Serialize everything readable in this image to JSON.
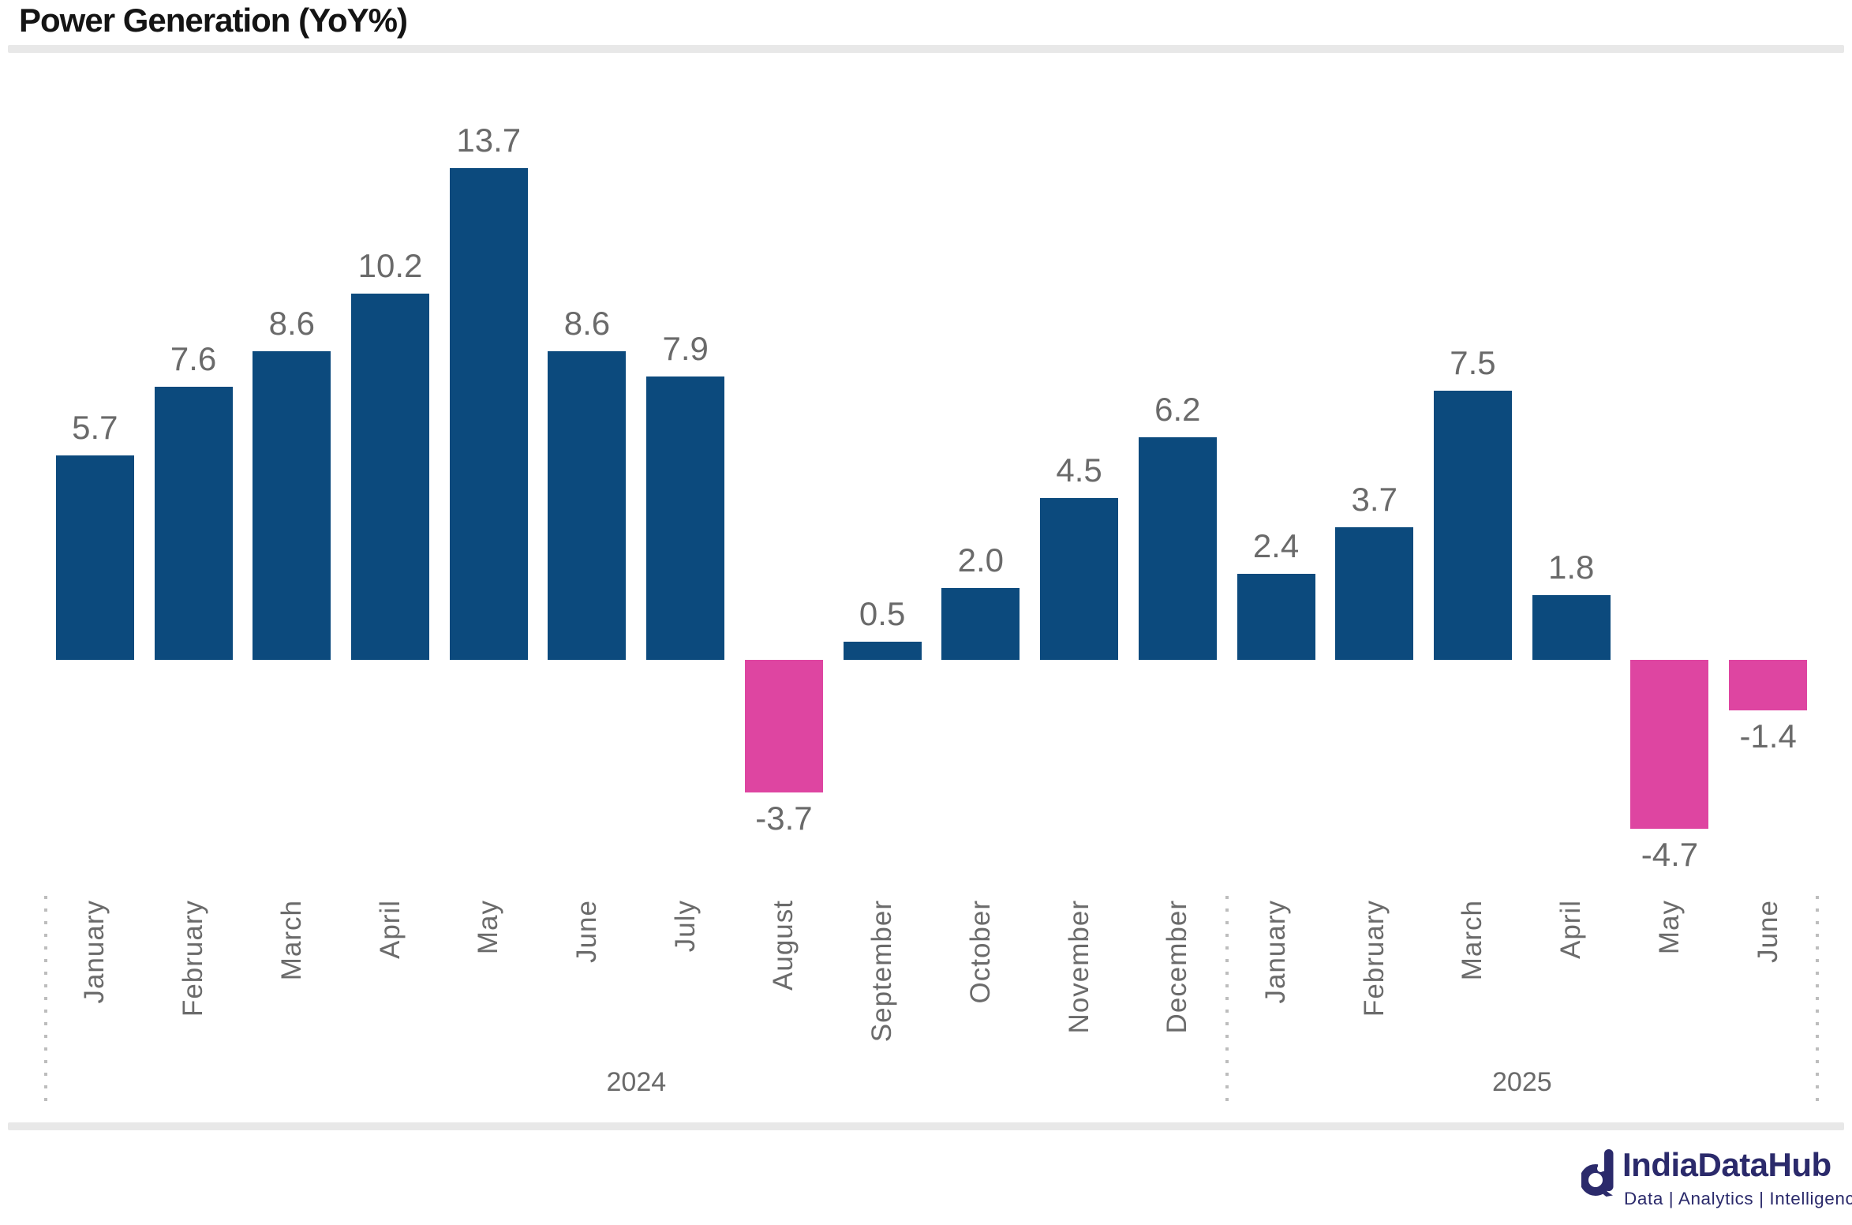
{
  "header": {
    "title": "Power Generation (YoY%)"
  },
  "chart_data": {
    "type": "bar",
    "title": "Power Generation (YoY%)",
    "x": [
      "January",
      "February",
      "March",
      "April",
      "May",
      "June",
      "July",
      "August",
      "September",
      "October",
      "November",
      "December",
      "January",
      "February",
      "March",
      "April",
      "May",
      "June"
    ],
    "values": [
      5.7,
      7.6,
      8.6,
      10.2,
      13.7,
      8.6,
      7.9,
      -3.7,
      0.5,
      2.0,
      4.5,
      6.2,
      2.4,
      3.7,
      7.5,
      1.8,
      -4.7,
      -1.4
    ],
    "year_groups": [
      {
        "label": "2024",
        "span": 12
      },
      {
        "label": "2025",
        "span": 6
      }
    ],
    "value_labels": true,
    "value_label_decimals": 1,
    "grid": false,
    "legend": false,
    "ylim": [
      -6,
      15
    ],
    "positive_color": "#0C4A7D",
    "negative_color": "#DE45A1",
    "label_color": "#6A6A6A",
    "separator_color": "#BDBDBD"
  },
  "footer": {
    "brand": "IndiaDataHub",
    "tagline": "Data | Analytics | Intelligence",
    "logo_color": "#2B2A6B",
    "logo_icon": "stylized-d-magnifier"
  }
}
